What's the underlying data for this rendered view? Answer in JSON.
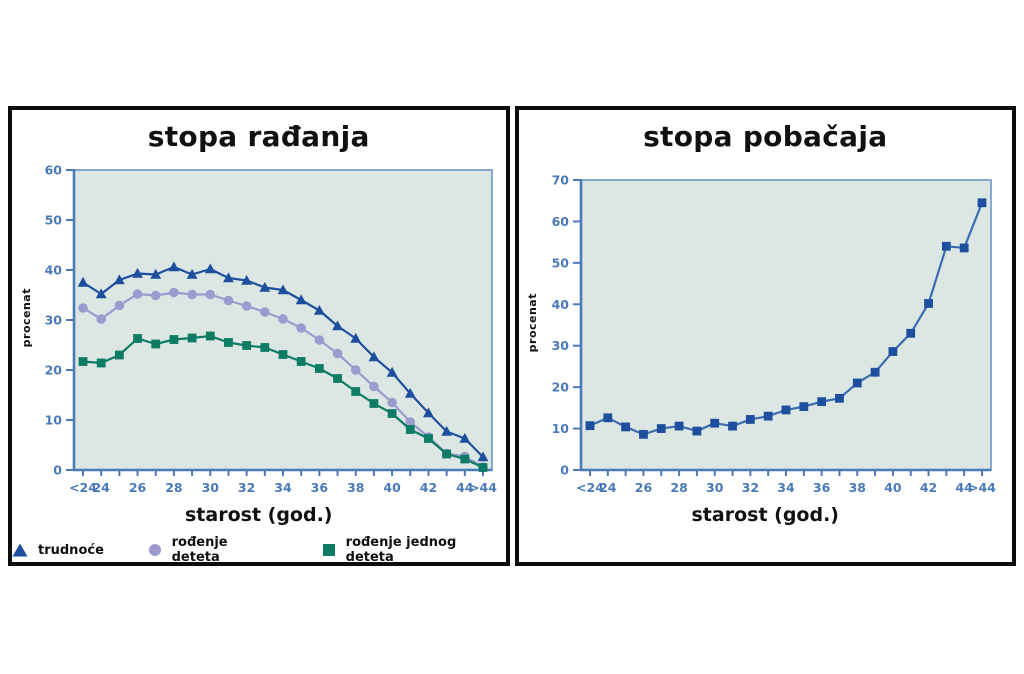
{
  "colors": {
    "panel_border": "#0d0d0d",
    "plot_background": "#dce7e4",
    "plot_frame": "#7ba0cb",
    "axis": "#4a7ab8",
    "tick_label": "#4a7ab8",
    "text": "#111111"
  },
  "chart_data": [
    {
      "type": "line",
      "title": "stopa rađanja",
      "xlabel": "starost (god.)",
      "ylabel": "procenat",
      "ylim": [
        0,
        60
      ],
      "ytick_step": 10,
      "grid": false,
      "legend_position": "bottom",
      "categories": [
        "<24",
        "24",
        "25",
        "26",
        "27",
        "28",
        "29",
        "30",
        "31",
        "32",
        "33",
        "34",
        "35",
        "36",
        "37",
        "38",
        "39",
        "40",
        "41",
        "42",
        "43",
        "44",
        ">44"
      ],
      "xtick_labeled": [
        "<24",
        "24",
        "26",
        "28",
        "30",
        "32",
        "34",
        "36",
        "38",
        "40",
        "42",
        "44",
        ">44"
      ],
      "series": [
        {
          "name": "trudnoće",
          "marker": "triangle",
          "color": "#1d4f9e",
          "values": [
            37.5,
            35.2,
            38.0,
            39.3,
            39.1,
            40.6,
            39.1,
            40.2,
            38.4,
            37.9,
            36.5,
            36.0,
            34.0,
            31.9,
            28.8,
            26.3,
            22.6,
            19.5,
            15.3,
            11.4,
            7.7,
            6.3,
            2.6
          ]
        },
        {
          "name": "rođenje deteta",
          "marker": "circle",
          "color": "#9b9bd0",
          "values": [
            32.4,
            30.2,
            32.9,
            35.2,
            34.9,
            35.5,
            35.1,
            35.1,
            33.9,
            32.8,
            31.6,
            30.2,
            28.4,
            26.0,
            23.3,
            20.0,
            16.7,
            13.5,
            9.6,
            6.6,
            3.3,
            2.7,
            0.6
          ]
        },
        {
          "name": "rođenje jednog deteta",
          "marker": "square",
          "color": "#0d7c65",
          "values": [
            21.7,
            21.4,
            23.0,
            26.3,
            25.2,
            26.1,
            26.4,
            26.8,
            25.5,
            24.9,
            24.5,
            23.1,
            21.7,
            20.3,
            18.3,
            15.7,
            13.3,
            11.3,
            8.1,
            6.3,
            3.2,
            2.2,
            0.5
          ]
        }
      ]
    },
    {
      "type": "line",
      "title": "stopa pobačaja",
      "xlabel": "starost (god.)",
      "ylabel": "procenat",
      "ylim": [
        0,
        70
      ],
      "ytick_step": 10,
      "grid": false,
      "legend_position": "none",
      "categories": [
        "<24",
        "24",
        "25",
        "26",
        "27",
        "28",
        "29",
        "30",
        "31",
        "32",
        "33",
        "34",
        "35",
        "36",
        "37",
        "38",
        "39",
        "40",
        "41",
        "42",
        "43",
        "44",
        ">44"
      ],
      "xtick_labeled": [
        "<24",
        "24",
        "26",
        "28",
        "30",
        "32",
        "34",
        "36",
        "38",
        "40",
        "42",
        "44",
        ">44"
      ],
      "series": [
        {
          "name": "stopa pobačaja",
          "marker": "square",
          "color": "#1d4f9e",
          "line_color": "#3b6cb0",
          "values": [
            10.7,
            12.6,
            10.4,
            8.6,
            10.0,
            10.6,
            9.4,
            11.3,
            10.6,
            12.2,
            13.0,
            14.5,
            15.3,
            16.5,
            17.3,
            21.0,
            23.6,
            28.6,
            33.0,
            40.2,
            54.0,
            53.6,
            64.5
          ]
        }
      ]
    }
  ]
}
